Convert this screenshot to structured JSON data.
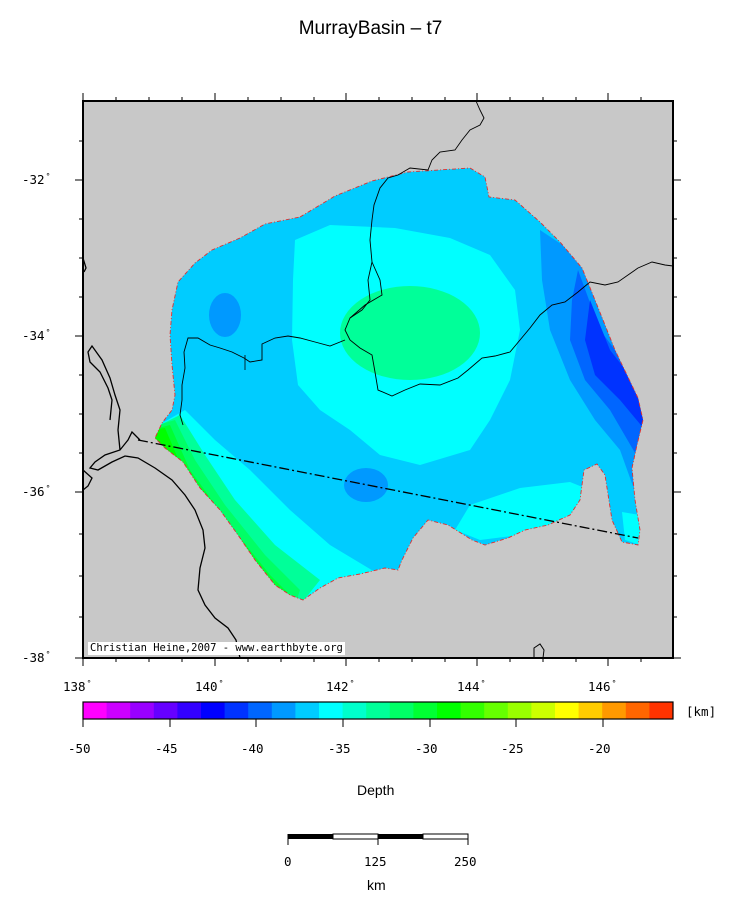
{
  "title": "MurrayBasin – t7",
  "copyright": "Christian Heine,2007 - www.earthbyte.org",
  "map": {
    "lat_labels": [
      "-32",
      "-34",
      "-36",
      "-38"
    ],
    "lon_labels": [
      "138",
      "140",
      "142",
      "144",
      "146"
    ],
    "degree_symbol": "°"
  },
  "colorbar": {
    "unit_label": "[km]",
    "tick_labels": [
      "-50",
      "-45",
      "-40",
      "-35",
      "-30",
      "-25",
      "-20"
    ],
    "title": "Depth",
    "colors": [
      "#ff00ff",
      "#cc00ff",
      "#9900ff",
      "#6600ff",
      "#3300ff",
      "#0000ff",
      "#0033ff",
      "#0066ff",
      "#0099ff",
      "#00ccff",
      "#00ffff",
      "#00ffcc",
      "#00ff99",
      "#00ff66",
      "#00ff33",
      "#00ff00",
      "#33ff00",
      "#66ff00",
      "#99ff00",
      "#ccff00",
      "#ffff00",
      "#ffcc00",
      "#ff9900",
      "#ff6600",
      "#ff3300"
    ]
  },
  "scalebar": {
    "tick_labels": [
      "0",
      "125",
      "250"
    ],
    "unit": "km"
  }
}
